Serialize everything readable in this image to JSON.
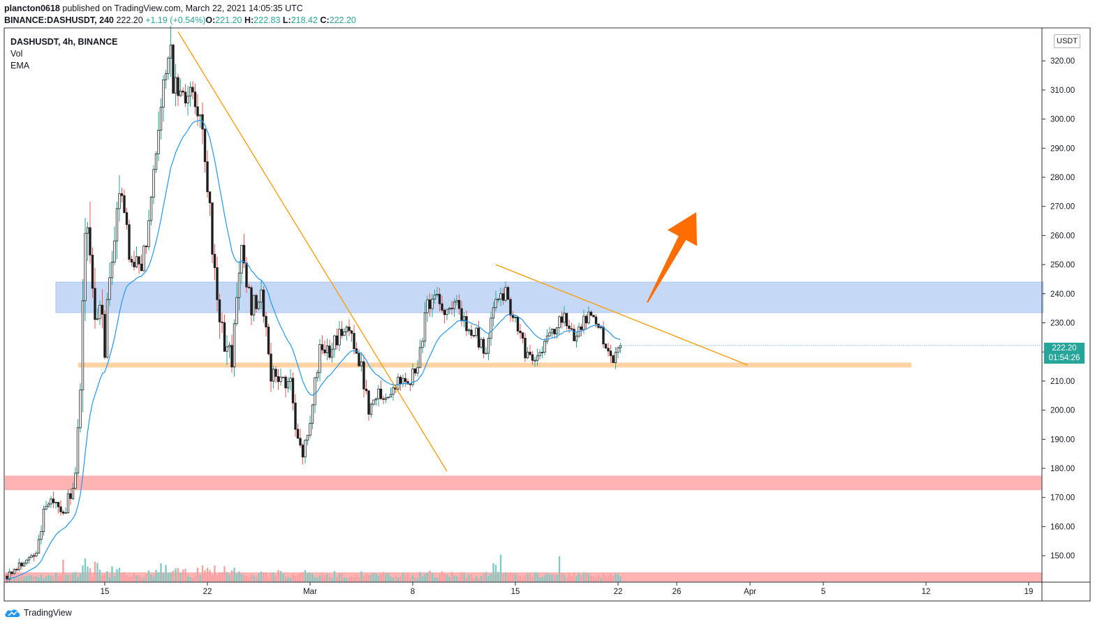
{
  "header": {
    "author": "plancton0618",
    "published_text": "published on TradingView.com, March 22, 2021 14:05:35 UTC",
    "symbol": "BINANCE:DASHUSDT, 240",
    "last": "222.20",
    "change": "+1.19 (+0.54%)",
    "ohlc": [
      {
        "label": "O:",
        "value": "221.20"
      },
      {
        "label": "H:",
        "value": "222.83"
      },
      {
        "label": "L:",
        "value": "218.42"
      },
      {
        "label": "C:",
        "value": "222.20"
      }
    ]
  },
  "legend": {
    "title": "DASHUSDT, 4h, BINANCE",
    "vol": "Vol",
    "ema": "EMA"
  },
  "currency_button": "USDT",
  "price_tag": {
    "price": "222.20",
    "countdown": "01:54:26"
  },
  "brand": "TradingView",
  "colors": {
    "up": "#26a69a",
    "down": "#ef5350",
    "candle": "#1f1f1f",
    "ema": "#2196f3",
    "trendline": "#ff9800",
    "arrow": "#ff6d00",
    "resistance_zone": "#bcd3f5",
    "support_line": "#fdd3a4",
    "demand_zone": "#ffb3b3"
  },
  "chart_data": {
    "type": "candlestick",
    "title": "DASHUSDT, 4h, BINANCE",
    "xlabel": "",
    "ylabel": "",
    "ylim": [
      143,
      330
    ],
    "y_ticks": [
      320,
      310,
      300,
      290,
      280,
      270,
      260,
      250,
      240,
      230,
      220,
      210,
      200,
      190,
      180,
      170,
      160,
      150
    ],
    "x_ticks": [
      {
        "label": "15",
        "bar": 40
      },
      {
        "label": "22",
        "bar": 82
      },
      {
        "label": "Mar",
        "bar": 124
      },
      {
        "label": "8",
        "bar": 166
      },
      {
        "label": "15",
        "bar": 208
      },
      {
        "label": "22",
        "bar": 250
      },
      {
        "label": "26",
        "bar": 274
      },
      {
        "label": "Apr",
        "bar": 304
      },
      {
        "label": "5",
        "bar": 334
      },
      {
        "label": "12",
        "bar": 376
      },
      {
        "label": "19",
        "bar": 418
      }
    ],
    "start_bar": 0,
    "last_bar": 251,
    "anchors": [
      [
        0,
        143,
        1.0
      ],
      [
        4,
        146,
        1.2
      ],
      [
        12,
        152,
        1.5
      ],
      [
        16,
        168,
        2.0
      ],
      [
        24,
        166,
        1.8
      ],
      [
        28,
        178,
        3.0
      ],
      [
        30,
        208,
        5.0
      ],
      [
        32,
        265,
        9.0
      ],
      [
        36,
        226,
        6.0
      ],
      [
        38,
        240,
        5.0
      ],
      [
        40,
        218,
        4.0
      ],
      [
        42,
        248,
        4.5
      ],
      [
        46,
        276,
        5.0
      ],
      [
        50,
        255,
        3.5
      ],
      [
        54,
        247,
        3.0
      ],
      [
        58,
        262,
        3.0
      ],
      [
        62,
        294,
        5.0
      ],
      [
        66,
        328,
        6.0
      ],
      [
        68,
        312,
        4.5
      ],
      [
        72,
        306,
        3.5
      ],
      [
        76,
        308,
        3.5
      ],
      [
        80,
        296,
        4.5
      ],
      [
        84,
        258,
        5.0
      ],
      [
        88,
        226,
        4.5
      ],
      [
        92,
        215,
        4.0
      ],
      [
        94,
        238,
        4.0
      ],
      [
        96,
        255,
        3.5
      ],
      [
        100,
        236,
        3.0
      ],
      [
        104,
        238,
        3.0
      ],
      [
        108,
        212,
        3.0
      ],
      [
        112,
        211,
        3.0
      ],
      [
        116,
        208,
        3.0
      ],
      [
        118,
        196,
        2.5
      ],
      [
        121,
        184,
        2.5
      ],
      [
        124,
        198,
        2.5
      ],
      [
        128,
        221,
        2.5
      ],
      [
        132,
        220,
        2.5
      ],
      [
        136,
        226,
        2.5
      ],
      [
        140,
        228,
        2.5
      ],
      [
        144,
        218,
        2.5
      ],
      [
        148,
        201,
        2.5
      ],
      [
        152,
        207,
        2.5
      ],
      [
        156,
        205,
        2.0
      ],
      [
        160,
        209,
        2.0
      ],
      [
        164,
        210,
        2.0
      ],
      [
        168,
        213,
        2.5
      ],
      [
        172,
        236,
        3.0
      ],
      [
        176,
        240,
        2.5
      ],
      [
        180,
        234,
        2.5
      ],
      [
        184,
        238,
        2.5
      ],
      [
        188,
        227,
        2.0
      ],
      [
        192,
        226,
        2.0
      ],
      [
        196,
        218,
        2.5
      ],
      [
        200,
        241,
        2.5
      ],
      [
        204,
        240,
        2.5
      ],
      [
        208,
        230,
        2.0
      ],
      [
        212,
        220,
        2.0
      ],
      [
        216,
        218,
        2.0
      ],
      [
        220,
        223,
        2.0
      ],
      [
        224,
        228,
        2.0
      ],
      [
        228,
        232,
        2.0
      ],
      [
        232,
        226,
        2.0
      ],
      [
        236,
        231,
        2.0
      ],
      [
        240,
        233,
        2.0
      ],
      [
        244,
        224,
        2.0
      ],
      [
        248,
        218,
        2.0
      ],
      [
        251,
        222.2,
        1.5
      ]
    ],
    "ema_period": 20,
    "resistance_zone": {
      "from_bar": 20,
      "to_bar": 424,
      "high": 244,
      "low": 233.5
    },
    "support_line": {
      "from_bar": 29,
      "to_bar": 370,
      "price": 215.5
    },
    "demand_zone": {
      "high": 177.5,
      "low": 172.5
    },
    "trendlines": [
      {
        "from": [
          70,
          330
        ],
        "to": [
          180,
          179
        ]
      },
      {
        "from": [
          200,
          250
        ],
        "to": [
          303,
          215.5
        ]
      }
    ],
    "arrow": {
      "from": [
        262,
        237
      ],
      "to": [
        282,
        268
      ]
    },
    "last_price": 222.2
  }
}
